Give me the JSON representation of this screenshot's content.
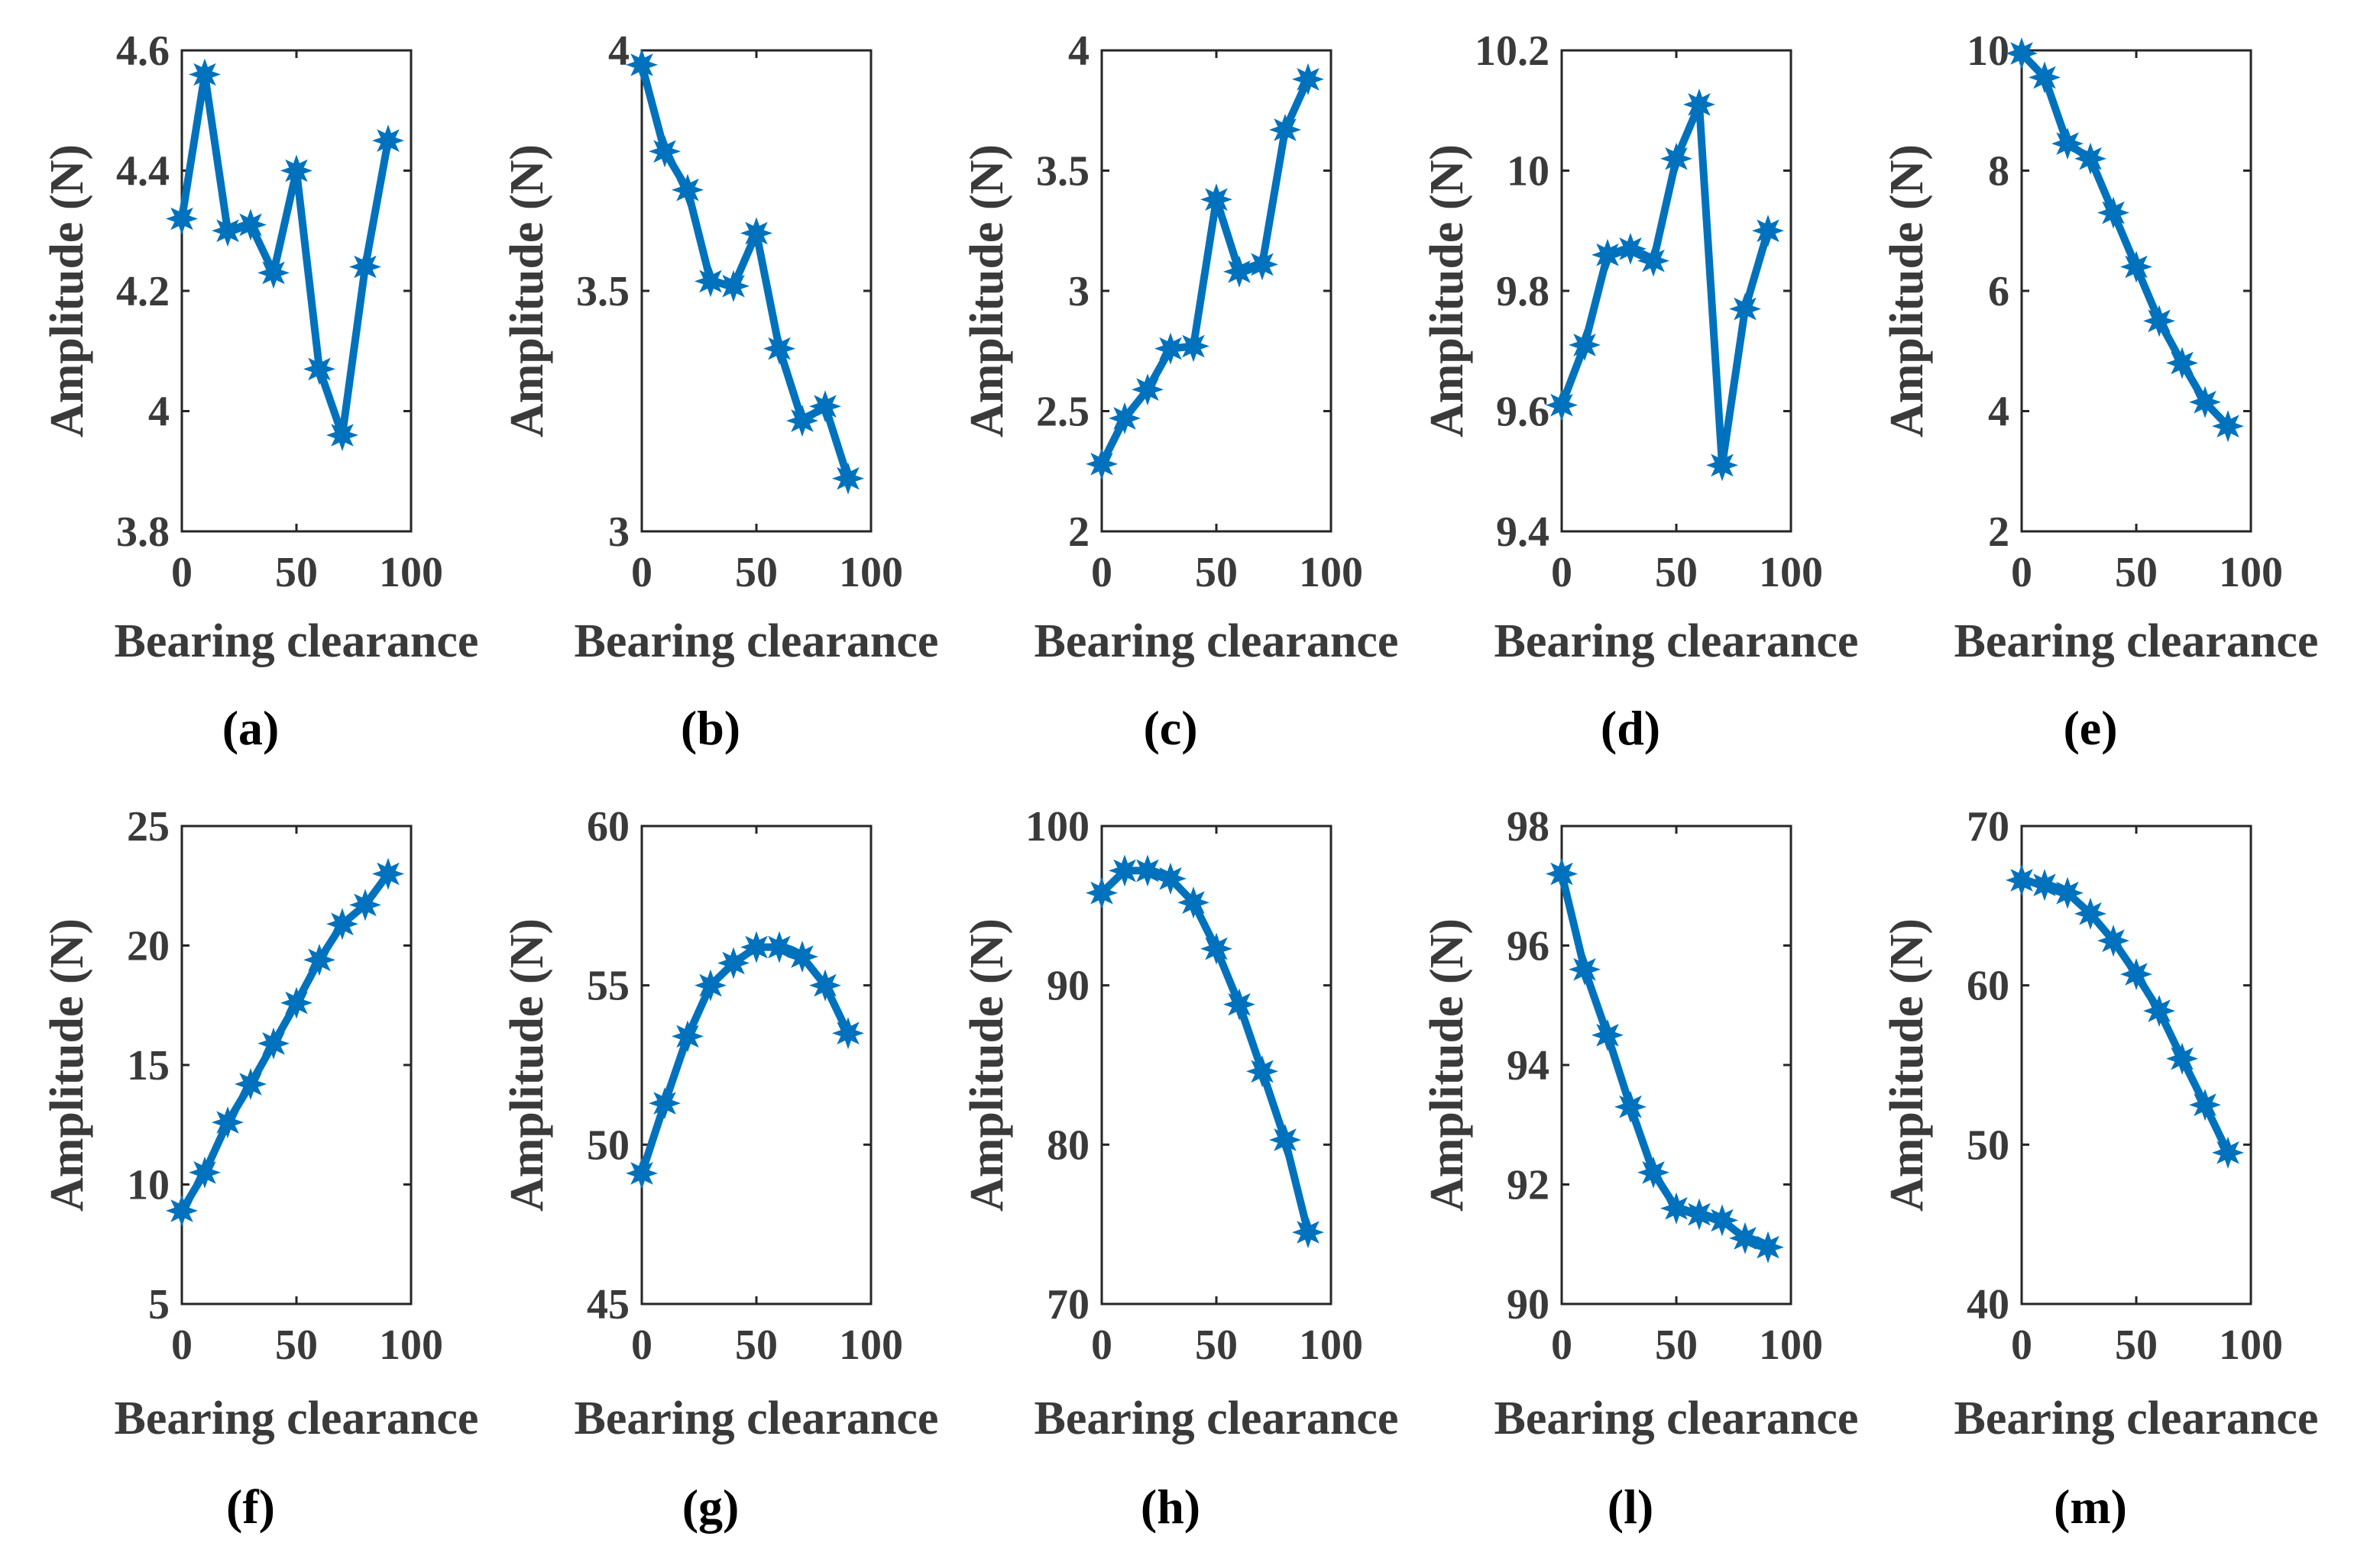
{
  "figure": {
    "series_color": "#0072BD",
    "panels_count": 10
  },
  "chart_data": [
    {
      "type": "line",
      "label": "(a)",
      "xlabel": "Bearing clearance",
      "ylabel": "Amplitude (N)",
      "xlim": [
        0,
        100
      ],
      "ylim": [
        3.8,
        4.6
      ],
      "xticks": [
        0,
        50,
        100
      ],
      "xtick_labels": [
        "0",
        "50",
        "100"
      ],
      "yticks": [
        3.8,
        4,
        4.2,
        4.4,
        4.6
      ],
      "ytick_labels": [
        "3.8",
        "4",
        "4.2",
        "4.4",
        "4.6"
      ],
      "x": [
        0,
        10,
        20,
        30,
        40,
        50,
        60,
        70,
        80,
        90
      ],
      "values": [
        4.32,
        4.56,
        4.3,
        4.31,
        4.23,
        4.4,
        4.07,
        3.96,
        4.24,
        4.45
      ]
    },
    {
      "type": "line",
      "label": "(b)",
      "xlabel": "Bearing clearance",
      "ylabel": "Amplitude (N)",
      "xlim": [
        0,
        100
      ],
      "ylim": [
        3,
        4
      ],
      "xticks": [
        0,
        50,
        100
      ],
      "xtick_labels": [
        "0",
        "50",
        "100"
      ],
      "yticks": [
        3,
        3.5,
        4
      ],
      "ytick_labels": [
        "3",
        "3.5",
        "4"
      ],
      "x": [
        0,
        10,
        20,
        30,
        40,
        50,
        60,
        70,
        80,
        90
      ],
      "values": [
        3.97,
        3.79,
        3.71,
        3.52,
        3.51,
        3.62,
        3.38,
        3.23,
        3.26,
        3.11
      ]
    },
    {
      "type": "line",
      "label": "(c)",
      "xlabel": "Bearing clearance",
      "ylabel": "Amplitude (N)",
      "xlim": [
        0,
        100
      ],
      "ylim": [
        2,
        4
      ],
      "xticks": [
        0,
        50,
        100
      ],
      "xtick_labels": [
        "0",
        "50",
        "100"
      ],
      "yticks": [
        2,
        2.5,
        3,
        3.5,
        4
      ],
      "ytick_labels": [
        "2",
        "2.5",
        "3",
        "3.5",
        "4"
      ],
      "x": [
        0,
        10,
        20,
        30,
        40,
        50,
        60,
        70,
        80,
        90
      ],
      "values": [
        2.28,
        2.47,
        2.59,
        2.76,
        2.77,
        3.38,
        3.08,
        3.11,
        3.67,
        3.88
      ]
    },
    {
      "type": "line",
      "label": "(d)",
      "xlabel": "Bearing clearance",
      "ylabel": "Amplitude (N)",
      "xlim": [
        0,
        100
      ],
      "ylim": [
        9.4,
        10.2
      ],
      "xticks": [
        0,
        50,
        100
      ],
      "xtick_labels": [
        "0",
        "50",
        "100"
      ],
      "yticks": [
        9.4,
        9.6,
        9.8,
        10,
        10.2
      ],
      "ytick_labels": [
        "9.4",
        "9.6",
        "9.8",
        "10",
        "10.2"
      ],
      "x": [
        0,
        10,
        20,
        30,
        40,
        50,
        60,
        70,
        80,
        90
      ],
      "values": [
        9.61,
        9.71,
        9.86,
        9.87,
        9.85,
        10.02,
        10.11,
        9.51,
        9.77,
        9.9
      ]
    },
    {
      "type": "line",
      "label": "(e)",
      "xlabel": "Bearing clearance",
      "ylabel": "Amplitude (N)",
      "xlim": [
        0,
        100
      ],
      "ylim": [
        2,
        10
      ],
      "xticks": [
        0,
        50,
        100
      ],
      "xtick_labels": [
        "0",
        "50",
        "100"
      ],
      "yticks": [
        2,
        4,
        6,
        8,
        10
      ],
      "ytick_labels": [
        "2",
        "4",
        "6",
        "8",
        "10"
      ],
      "x": [
        0,
        10,
        20,
        30,
        40,
        50,
        60,
        70,
        80,
        90
      ],
      "values": [
        9.95,
        9.55,
        8.45,
        8.2,
        7.3,
        6.4,
        5.5,
        4.8,
        4.15,
        3.75
      ]
    },
    {
      "type": "line",
      "label": "(f)",
      "xlabel": "Bearing clearance",
      "ylabel": "Amplitude (N)",
      "xlim": [
        0,
        100
      ],
      "ylim": [
        5,
        25
      ],
      "xticks": [
        0,
        50,
        100
      ],
      "xtick_labels": [
        "0",
        "50",
        "100"
      ],
      "yticks": [
        5,
        10,
        15,
        20,
        25
      ],
      "ytick_labels": [
        "5",
        "10",
        "15",
        "20",
        "25"
      ],
      "x": [
        0,
        10,
        20,
        30,
        40,
        50,
        60,
        70,
        80,
        90
      ],
      "values": [
        8.9,
        10.5,
        12.6,
        14.2,
        15.9,
        17.6,
        19.4,
        20.9,
        21.7,
        23.0
      ]
    },
    {
      "type": "line",
      "label": "(g)",
      "xlabel": "Bearing clearance",
      "ylabel": "Amplitude (N)",
      "xlim": [
        0,
        100
      ],
      "ylim": [
        45,
        60
      ],
      "xticks": [
        0,
        50,
        100
      ],
      "xtick_labels": [
        "0",
        "50",
        "100"
      ],
      "yticks": [
        45,
        50,
        55,
        60
      ],
      "ytick_labels": [
        "45",
        "50",
        "55",
        "60"
      ],
      "x": [
        0,
        10,
        20,
        30,
        40,
        50,
        60,
        70,
        80,
        90
      ],
      "values": [
        49.1,
        51.3,
        53.4,
        55.0,
        55.7,
        56.2,
        56.2,
        55.9,
        55.0,
        53.5
      ]
    },
    {
      "type": "line",
      "label": "(h)",
      "xlabel": "Bearing clearance",
      "ylabel": "Amplitude (N)",
      "xlim": [
        0,
        100
      ],
      "ylim": [
        70,
        100
      ],
      "xticks": [
        0,
        50,
        100
      ],
      "xtick_labels": [
        "0",
        "50",
        "100"
      ],
      "yticks": [
        70,
        80,
        90,
        100
      ],
      "ytick_labels": [
        "70",
        "80",
        "90",
        "100"
      ],
      "x": [
        0,
        10,
        20,
        30,
        40,
        50,
        60,
        70,
        80,
        90
      ],
      "values": [
        95.8,
        97.2,
        97.2,
        96.7,
        95.2,
        92.3,
        88.8,
        84.6,
        80.3,
        74.5
      ]
    },
    {
      "type": "line",
      "label": "(l)",
      "xlabel": "Bearing clearance",
      "ylabel": "Amplitude (N)",
      "xlim": [
        0,
        100
      ],
      "ylim": [
        90,
        98
      ],
      "xticks": [
        0,
        50,
        100
      ],
      "xtick_labels": [
        "0",
        "50",
        "100"
      ],
      "yticks": [
        90,
        92,
        94,
        96,
        98
      ],
      "ytick_labels": [
        "90",
        "92",
        "94",
        "96",
        "98"
      ],
      "x": [
        0,
        10,
        20,
        30,
        40,
        50,
        60,
        70,
        80,
        90
      ],
      "values": [
        97.2,
        95.6,
        94.5,
        93.3,
        92.2,
        91.6,
        91.5,
        91.4,
        91.1,
        90.95
      ]
    },
    {
      "type": "line",
      "label": "(m)",
      "xlabel": "Bearing clearance",
      "ylabel": "Amplitude (N)",
      "xlim": [
        0,
        100
      ],
      "ylim": [
        40,
        70
      ],
      "xticks": [
        0,
        50,
        100
      ],
      "xtick_labels": [
        "0",
        "50",
        "100"
      ],
      "yticks": [
        40,
        50,
        60,
        70
      ],
      "ytick_labels": [
        "40",
        "50",
        "60",
        "70"
      ],
      "x": [
        0,
        10,
        20,
        30,
        40,
        50,
        60,
        70,
        80,
        90
      ],
      "values": [
        66.6,
        66.3,
        65.8,
        64.5,
        62.8,
        60.7,
        58.4,
        55.4,
        52.5,
        49.5
      ]
    }
  ]
}
